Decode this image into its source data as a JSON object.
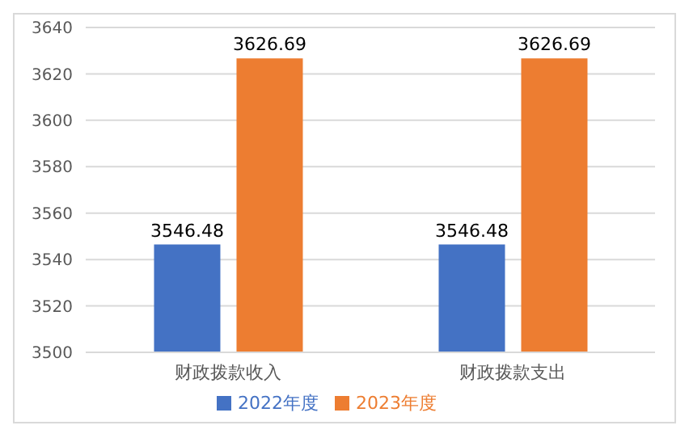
{
  "chart_data": {
    "type": "bar",
    "categories": [
      "财政拨款收入",
      "财政拨款支出"
    ],
    "series": [
      {
        "name": "2022年度",
        "color": "#4472c4",
        "values": [
          3546.48,
          3546.48
        ]
      },
      {
        "name": "2023年度",
        "color": "#ed7d31",
        "values": [
          3626.69,
          3626.69
        ]
      }
    ],
    "ylim": [
      3500,
      3640
    ],
    "yticks": [
      3500,
      3520,
      3540,
      3560,
      3580,
      3600,
      3620,
      3640
    ],
    "grid": "y",
    "legend": "bottom",
    "data_labels": true
  }
}
